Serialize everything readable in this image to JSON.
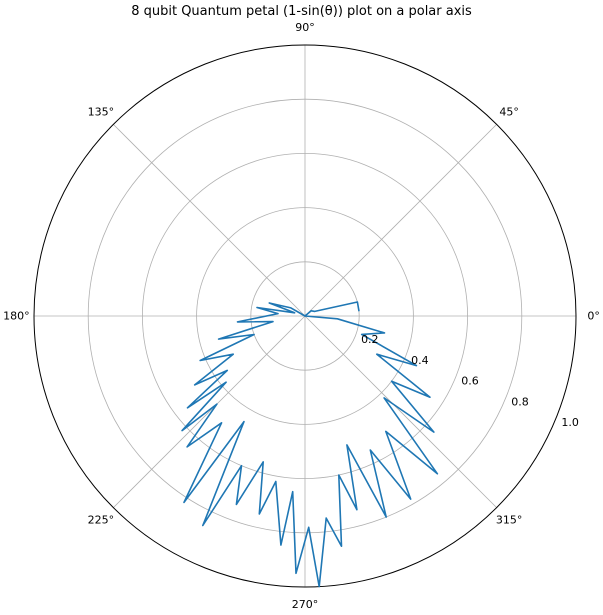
{
  "chart_data": {
    "type": "line",
    "projection": "polar",
    "title": "8 qubit Quantum petal (1-sin(θ)) plot on a polar axis",
    "theta_ticks": [
      "0°",
      "45°",
      "90°",
      "135°",
      "180°",
      "225°",
      "270°",
      "315°"
    ],
    "theta_tick_angles_deg": [
      0,
      45,
      90,
      135,
      180,
      225,
      270,
      315
    ],
    "r_ticks": [
      "0.2",
      "0.4",
      "0.6",
      "0.8",
      "1.0"
    ],
    "r_tick_values": [
      0.2,
      0.4,
      0.6,
      0.8,
      1.0
    ],
    "rlim": [
      0,
      1.0
    ],
    "grid": true,
    "series": [
      {
        "color": "#1f77b4",
        "points": [
          {
            "theta": 5,
            "r": 0.2
          },
          {
            "theta": 15,
            "r": 0.2
          },
          {
            "theta": 25,
            "r": 0.04
          },
          {
            "theta": 40,
            "r": 0.03
          },
          {
            "theta": 90,
            "r": 0.0
          },
          {
            "theta": 150,
            "r": 0.06
          },
          {
            "theta": 160,
            "r": 0.14
          },
          {
            "theta": 163,
            "r": 0.04
          },
          {
            "theta": 170,
            "r": 0.18
          },
          {
            "theta": 175,
            "r": 0.1
          },
          {
            "theta": 185,
            "r": 0.25
          },
          {
            "theta": 190,
            "r": 0.12
          },
          {
            "theta": 195,
            "r": 0.33
          },
          {
            "theta": 200,
            "r": 0.2
          },
          {
            "theta": 203,
            "r": 0.42
          },
          {
            "theta": 208,
            "r": 0.3
          },
          {
            "theta": 212,
            "r": 0.48
          },
          {
            "theta": 215,
            "r": 0.35
          },
          {
            "theta": 218,
            "r": 0.55
          },
          {
            "theta": 220,
            "r": 0.38
          },
          {
            "theta": 223,
            "r": 0.62
          },
          {
            "theta": 225,
            "r": 0.46
          },
          {
            "theta": 228,
            "r": 0.65
          },
          {
            "theta": 232,
            "r": 0.5
          },
          {
            "theta": 237,
            "r": 0.82
          },
          {
            "theta": 240,
            "r": 0.45
          },
          {
            "theta": 244,
            "r": 0.86
          },
          {
            "theta": 247,
            "r": 0.6
          },
          {
            "theta": 250,
            "r": 0.74
          },
          {
            "theta": 254,
            "r": 0.56
          },
          {
            "theta": 257,
            "r": 0.75
          },
          {
            "theta": 260,
            "r": 0.62
          },
          {
            "theta": 264,
            "r": 0.85
          },
          {
            "theta": 266,
            "r": 0.65
          },
          {
            "theta": 268,
            "r": 0.95
          },
          {
            "theta": 271,
            "r": 0.78
          },
          {
            "theta": 273,
            "r": 1.0
          },
          {
            "theta": 276,
            "r": 0.75
          },
          {
            "theta": 279,
            "r": 0.86
          },
          {
            "theta": 282,
            "r": 0.6
          },
          {
            "theta": 285,
            "r": 0.74
          },
          {
            "theta": 288,
            "r": 0.5
          },
          {
            "theta": 292,
            "r": 0.8
          },
          {
            "theta": 296,
            "r": 0.55
          },
          {
            "theta": 300,
            "r": 0.78
          },
          {
            "theta": 305,
            "r": 0.52
          },
          {
            "theta": 310,
            "r": 0.76
          },
          {
            "theta": 314,
            "r": 0.42
          },
          {
            "theta": 318,
            "r": 0.64
          },
          {
            "theta": 323,
            "r": 0.4
          },
          {
            "theta": 327,
            "r": 0.55
          },
          {
            "theta": 332,
            "r": 0.3
          },
          {
            "theta": 336,
            "r": 0.45
          },
          {
            "theta": 342,
            "r": 0.22
          },
          {
            "theta": 348,
            "r": 0.3
          },
          {
            "theta": 355,
            "r": 0.12
          },
          {
            "theta": 360,
            "r": 0.0
          }
        ]
      }
    ]
  }
}
